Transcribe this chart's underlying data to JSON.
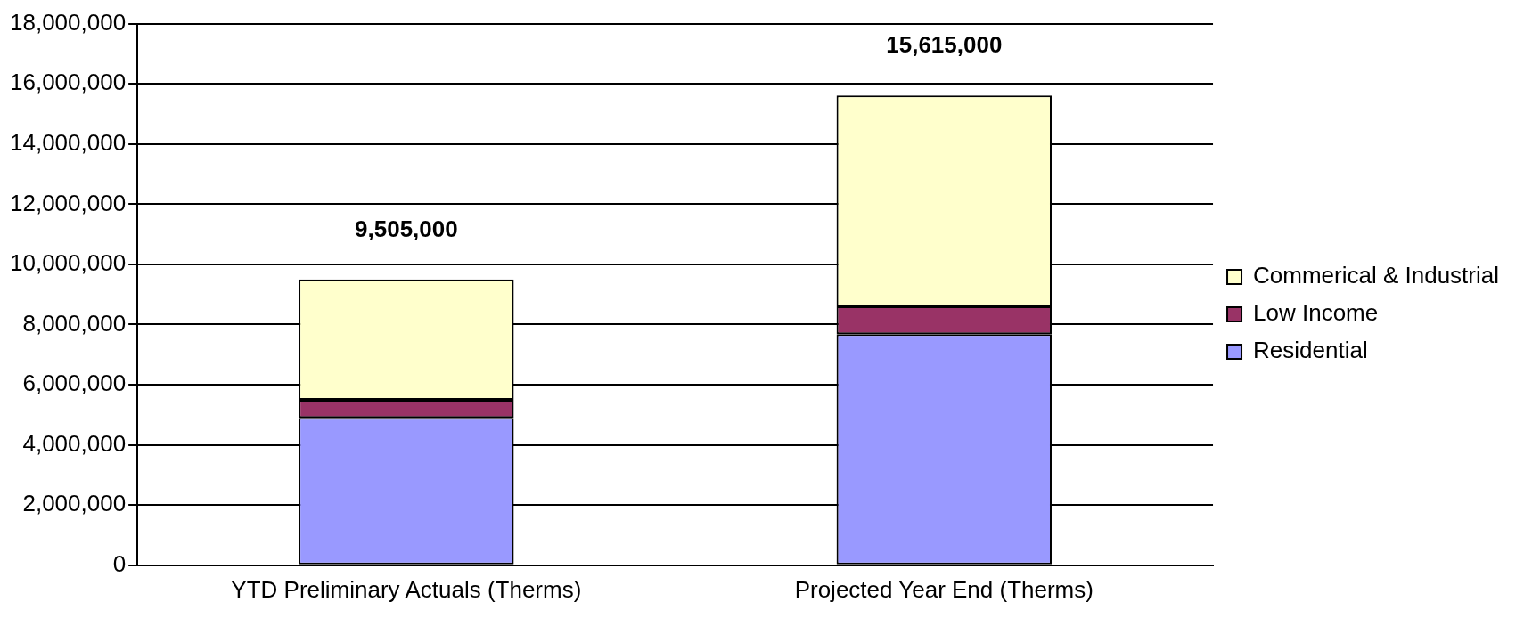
{
  "chart_data": {
    "type": "bar",
    "stacked": true,
    "categories": [
      "YTD Preliminary Actuals (Therms)",
      "Projected Year End (Therms)"
    ],
    "series": [
      {
        "name": "Residential",
        "color": "#9999ff",
        "values": [
          4900000,
          7680000
        ]
      },
      {
        "name": "Low Income",
        "color": "#993366",
        "values": [
          600000,
          930000
        ]
      },
      {
        "name": "Commerical & Industrial",
        "color": "#ffffcc",
        "values": [
          4005000,
          7005000
        ]
      }
    ],
    "totals": [
      "9,505,000",
      "15,615,000"
    ],
    "ylim": [
      0,
      18000000
    ],
    "yticks": [
      0,
      {
        "value": 2000000,
        "label": "2,000,000"
      },
      {
        "value": 4000000,
        "label": "4,000,000"
      },
      {
        "value": 6000000,
        "label": "6,000,000"
      },
      {
        "value": 8000000,
        "label": "8,000,000"
      },
      {
        "value": 10000000,
        "label": "10,000,000"
      },
      {
        "value": 12000000,
        "label": "12,000,000"
      },
      {
        "value": 14000000,
        "label": "14,000,000"
      },
      {
        "value": 16000000,
        "label": "16,000,000"
      },
      {
        "value": 18000000,
        "label": "18,000,000"
      }
    ],
    "grid": "y",
    "legend": "right"
  }
}
